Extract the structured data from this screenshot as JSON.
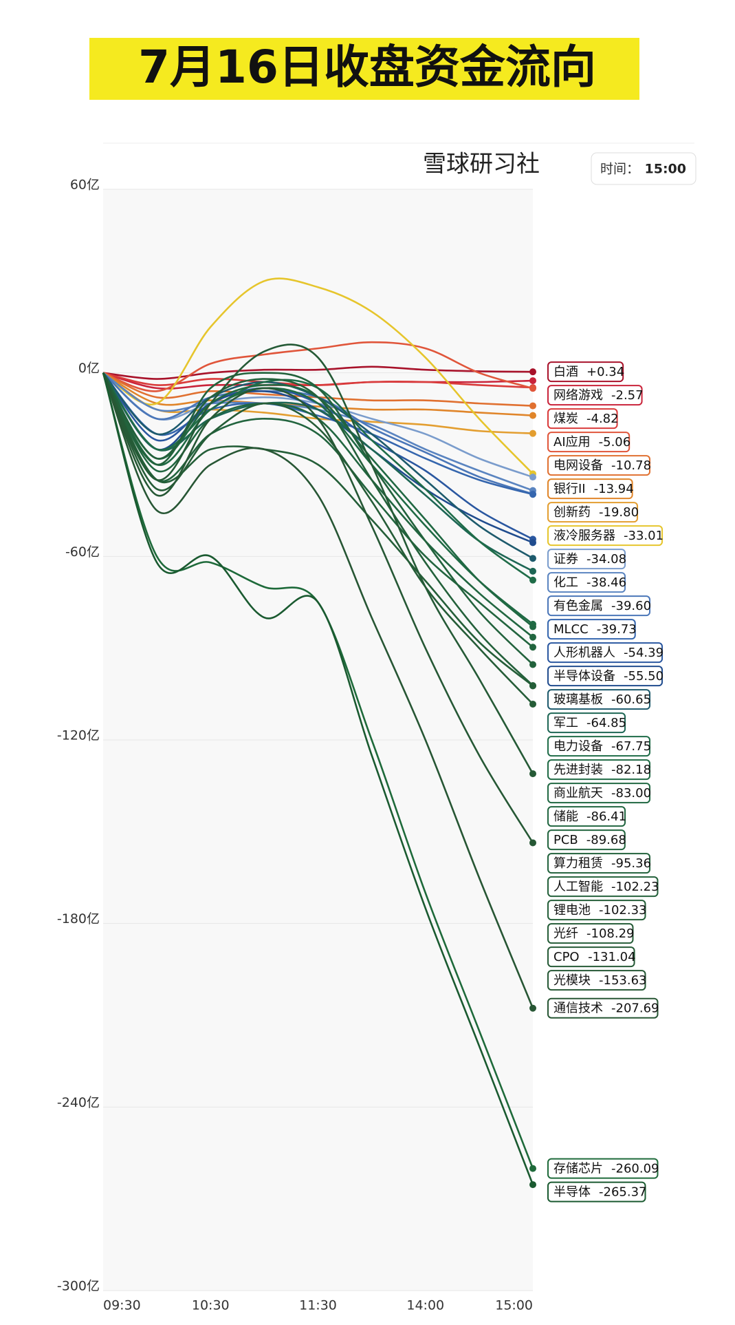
{
  "chart_data": {
    "type": "line",
    "title": "7月16日收盘资金流向",
    "source": "雪球研习社",
    "time_label": "时间：",
    "time": "15:00",
    "categories": [
      "09:30",
      null,
      "10:30",
      null,
      "11:30",
      null,
      "14:00",
      null,
      "15:00"
    ],
    "ylim": [
      -300,
      60
    ],
    "yticks": [
      {
        "value": 60,
        "label": "60亿"
      },
      {
        "value": 0,
        "label": "0亿"
      },
      {
        "value": -60,
        "label": "-60亿"
      },
      {
        "value": -120,
        "label": "-120亿"
      },
      {
        "value": -180,
        "label": "-180亿"
      },
      {
        "value": -240,
        "label": "-240亿"
      },
      {
        "value": -300,
        "label": "-300亿"
      }
    ],
    "grid": true,
    "series": [
      {
        "name": "白酒",
        "color": "#a8122a",
        "values": [
          0,
          -2,
          0,
          1,
          1,
          2,
          1,
          0.5,
          0.34
        ],
        "value_labels": [
          null,
          null,
          null,
          null,
          null,
          null,
          null,
          null,
          "+0.34"
        ]
      },
      {
        "name": "网络游戏",
        "color": "#c9233a",
        "values": [
          0,
          -5,
          -4,
          -4,
          -4,
          -3,
          -3,
          -3,
          -2.57
        ],
        "value_labels": [
          null,
          null,
          null,
          null,
          null,
          null,
          null,
          null,
          "-2.57"
        ]
      },
      {
        "name": "煤炭",
        "color": "#d93a3a",
        "values": [
          0,
          -4,
          -2,
          -3,
          -4,
          -3,
          -3,
          -4,
          -4.82
        ],
        "value_labels": [
          null,
          null,
          null,
          null,
          null,
          null,
          null,
          null,
          "-4.82"
        ]
      },
      {
        "name": "AI应用",
        "color": "#e0553a",
        "values": [
          0,
          -6,
          3,
          6,
          8,
          10,
          8,
          0,
          -5.06
        ],
        "value_labels": [
          null,
          null,
          null,
          null,
          null,
          null,
          null,
          null,
          "-5.06"
        ]
      },
      {
        "name": "电网设备",
        "color": "#e07030",
        "values": [
          0,
          -8,
          -6,
          -7,
          -8,
          -9,
          -9,
          -10,
          -10.78
        ],
        "value_labels": [
          null,
          null,
          null,
          null,
          null,
          null,
          null,
          null,
          "-10.78"
        ]
      },
      {
        "name": "银行II",
        "color": "#e0852a",
        "values": [
          0,
          -10,
          -9,
          -10,
          -11,
          -12,
          -12,
          -13,
          -13.94
        ],
        "value_labels": [
          null,
          null,
          null,
          null,
          null,
          null,
          null,
          null,
          "-13.94"
        ]
      },
      {
        "name": "创新药",
        "color": "#e39e30",
        "values": [
          0,
          -12,
          -12,
          -13,
          -15,
          -16,
          -17,
          -19,
          -19.8
        ],
        "value_labels": [
          null,
          null,
          null,
          null,
          null,
          null,
          null,
          null,
          "-19.80"
        ]
      },
      {
        "name": "液冷服务器",
        "color": "#e6c52c",
        "values": [
          0,
          -10,
          15,
          30,
          28,
          20,
          5,
          -15,
          -33.01
        ],
        "value_labels": [
          null,
          null,
          null,
          null,
          null,
          null,
          null,
          null,
          "-33.01"
        ]
      },
      {
        "name": "证券",
        "color": "#7a9ccc",
        "values": [
          0,
          -15,
          -10,
          -8,
          -10,
          -15,
          -20,
          -28,
          -34.08
        ],
        "value_labels": [
          null,
          null,
          null,
          null,
          null,
          null,
          null,
          null,
          "-34.08"
        ]
      },
      {
        "name": "化工",
        "color": "#5a84c0",
        "values": [
          0,
          -12,
          -10,
          -10,
          -12,
          -17,
          -25,
          -32,
          -38.46
        ],
        "value_labels": [
          null,
          null,
          null,
          null,
          null,
          null,
          null,
          null,
          "-38.46"
        ]
      },
      {
        "name": "有色金属",
        "color": "#4a76b8",
        "values": [
          0,
          -15,
          -8,
          -6,
          -8,
          -18,
          -26,
          -34,
          -39.6
        ],
        "value_labels": [
          null,
          null,
          null,
          null,
          null,
          null,
          null,
          null,
          "-39.60"
        ]
      },
      {
        "name": "MLCC",
        "color": "#3566ae",
        "values": [
          0,
          -20,
          -12,
          -10,
          -14,
          -20,
          -28,
          -35,
          -39.73
        ],
        "value_labels": [
          null,
          null,
          null,
          null,
          null,
          null,
          null,
          null,
          "-39.73"
        ]
      },
      {
        "name": "人形机器人",
        "color": "#2a57a0",
        "values": [
          0,
          -22,
          -10,
          -5,
          -10,
          -22,
          -32,
          -45,
          -54.39
        ],
        "value_labels": [
          null,
          null,
          null,
          null,
          null,
          null,
          null,
          null,
          "-54.39"
        ]
      },
      {
        "name": "半导体设备",
        "color": "#204c8e",
        "values": [
          0,
          -25,
          -10,
          -6,
          -12,
          -25,
          -38,
          -48,
          -55.5
        ],
        "value_labels": [
          null,
          null,
          null,
          null,
          null,
          null,
          null,
          null,
          "-55.50"
        ]
      },
      {
        "name": "玻璃基板",
        "color": "#1d5a6c",
        "values": [
          0,
          -20,
          -8,
          -3,
          -8,
          -20,
          -35,
          -50,
          -60.65
        ],
        "value_labels": [
          null,
          null,
          null,
          null,
          null,
          null,
          null,
          null,
          "-60.65"
        ]
      },
      {
        "name": "军工",
        "color": "#1d6654",
        "values": [
          0,
          -25,
          -15,
          -10,
          -12,
          -25,
          -40,
          -55,
          -64.85
        ],
        "value_labels": [
          null,
          null,
          null,
          null,
          null,
          null,
          null,
          null,
          "-64.85"
        ]
      },
      {
        "name": "电力设备",
        "color": "#1f6c48",
        "values": [
          0,
          -25,
          -12,
          -3,
          -5,
          -22,
          -38,
          -55,
          -67.75
        ],
        "value_labels": [
          null,
          null,
          null,
          null,
          null,
          null,
          null,
          null,
          "-67.75"
        ]
      },
      {
        "name": "先进封装",
        "color": "#1f6a44",
        "values": [
          0,
          -30,
          -12,
          -5,
          -10,
          -30,
          -50,
          -68,
          -82.18
        ],
        "value_labels": [
          null,
          null,
          null,
          null,
          null,
          null,
          null,
          null,
          "-82.18"
        ]
      },
      {
        "name": "商业航天",
        "color": "#206842",
        "values": [
          0,
          -28,
          -10,
          -4,
          -8,
          -28,
          -48,
          -68,
          -83.0
        ],
        "value_labels": [
          null,
          null,
          null,
          null,
          null,
          null,
          null,
          null,
          "-83.00"
        ]
      },
      {
        "name": "储能",
        "color": "#216640",
        "values": [
          0,
          -32,
          -15,
          -10,
          -15,
          -35,
          -55,
          -72,
          -86.41
        ],
        "value_labels": [
          null,
          null,
          null,
          null,
          null,
          null,
          null,
          null,
          "-86.41"
        ]
      },
      {
        "name": "PCB",
        "color": "#22643e",
        "values": [
          0,
          -35,
          -20,
          -15,
          -20,
          -40,
          -60,
          -75,
          -89.68
        ],
        "value_labels": [
          null,
          null,
          null,
          null,
          null,
          null,
          null,
          null,
          "-89.68"
        ]
      },
      {
        "name": "算力租赁",
        "color": "#22623c",
        "values": [
          0,
          -30,
          -5,
          0,
          -5,
          -30,
          -55,
          -78,
          -95.36
        ],
        "value_labels": [
          null,
          null,
          null,
          null,
          null,
          null,
          null,
          null,
          "-95.36"
        ]
      },
      {
        "name": "人工智能",
        "color": "#23603a",
        "values": [
          0,
          -28,
          -8,
          -2,
          -8,
          -35,
          -62,
          -85,
          -102.23
        ],
        "value_labels": [
          null,
          null,
          null,
          null,
          null,
          null,
          null,
          null,
          "-102.23"
        ]
      },
      {
        "name": "锂电池",
        "color": "#245e38",
        "values": [
          0,
          -35,
          -25,
          -25,
          -30,
          -48,
          -68,
          -88,
          -102.33
        ],
        "value_labels": [
          null,
          null,
          null,
          null,
          null,
          null,
          null,
          null,
          "-102.33"
        ]
      },
      {
        "name": "光纤",
        "color": "#255c37",
        "values": [
          0,
          -38,
          -20,
          -10,
          -18,
          -42,
          -70,
          -90,
          -108.29
        ],
        "value_labels": [
          null,
          null,
          null,
          null,
          null,
          null,
          null,
          null,
          "-108.29"
        ]
      },
      {
        "name": "CPO",
        "color": "#255a36",
        "values": [
          0,
          -35,
          -10,
          7,
          5,
          -30,
          -70,
          -100,
          -131.04
        ],
        "value_labels": [
          null,
          null,
          null,
          null,
          null,
          null,
          null,
          null,
          "-131.04"
        ]
      },
      {
        "name": "光模块",
        "color": "#265835",
        "values": [
          0,
          -40,
          -15,
          -5,
          -15,
          -50,
          -90,
          -125,
          -153.63
        ],
        "value_labels": [
          null,
          null,
          null,
          null,
          null,
          null,
          null,
          null,
          "-153.63"
        ]
      },
      {
        "name": "通信技术",
        "color": "#275634",
        "values": [
          0,
          -45,
          -30,
          -25,
          -40,
          -80,
          -120,
          -165,
          -207.69
        ],
        "value_labels": [
          null,
          null,
          null,
          null,
          null,
          null,
          null,
          null,
          "-207.69"
        ]
      },
      {
        "name": "存储芯片",
        "color": "#1e6a3a",
        "values": [
          0,
          -60,
          -62,
          -70,
          -75,
          -120,
          -170,
          -215,
          -260.09
        ],
        "value_labels": [
          null,
          null,
          null,
          null,
          null,
          null,
          null,
          null,
          "-260.09"
        ]
      },
      {
        "name": "半导体",
        "color": "#1a5a30",
        "values": [
          0,
          -62,
          -60,
          -80,
          -75,
          -125,
          -175,
          -220,
          -265.37
        ],
        "value_labels": [
          null,
          null,
          null,
          null,
          null,
          null,
          null,
          null,
          "-265.37"
        ]
      }
    ]
  }
}
